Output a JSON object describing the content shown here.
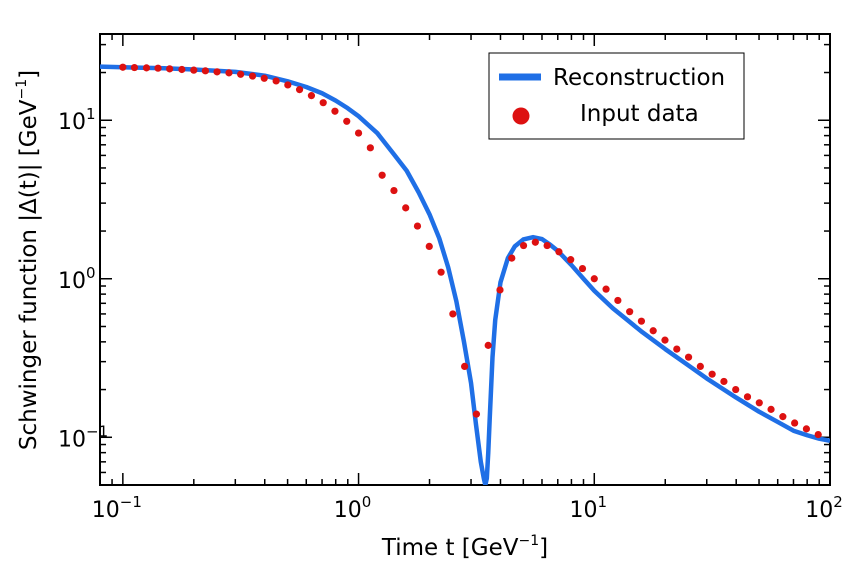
{
  "chart_data": {
    "type": "line",
    "xlabel": "Time t [GeV",
    "xlabel_unit_exp": "−1",
    "xlabel_close": "]",
    "ylabel": "Schwinger function |Δ(t)| [GeV",
    "ylabel_unit_exp": "−1",
    "ylabel_close": "]",
    "x_scale": "log",
    "y_scale": "log",
    "xlim": [
      0.08,
      100
    ],
    "ylim": [
      0.05,
      35
    ],
    "x_ticks": [
      {
        "value": 0.1,
        "base": "10",
        "exp": "−1"
      },
      {
        "value": 1,
        "base": "10",
        "exp": "0"
      },
      {
        "value": 10,
        "base": "10",
        "exp": "1"
      },
      {
        "value": 100,
        "base": "10",
        "exp": "2"
      }
    ],
    "y_ticks": [
      {
        "value": 0.1,
        "base": "10",
        "exp": "−1"
      },
      {
        "value": 1,
        "base": "10",
        "exp": "0"
      },
      {
        "value": 10,
        "base": "10",
        "exp": "1"
      }
    ],
    "legend": {
      "position": "top-right",
      "entries": [
        {
          "label": "Reconstruction",
          "marker": "line",
          "color": "#1f6fe6"
        },
        {
          "label": "Input data",
          "marker": "circle",
          "color": "#dd1111"
        }
      ]
    },
    "grid": false,
    "series": [
      {
        "name": "Reconstruction",
        "style": "line",
        "color": "#1f6fe6",
        "x": [
          0.08,
          0.1,
          0.15,
          0.2,
          0.3,
          0.4,
          0.5,
          0.6,
          0.7,
          0.8,
          0.9,
          1.0,
          1.2,
          1.4,
          1.6,
          1.8,
          2.0,
          2.2,
          2.4,
          2.6,
          2.8,
          3.0,
          3.15,
          3.3,
          3.4,
          3.45,
          3.5,
          3.55,
          3.6,
          3.7,
          3.8,
          4.0,
          4.3,
          4.6,
          5.0,
          5.5,
          6.0,
          6.5,
          7.0,
          8.0,
          9.0,
          10,
          12,
          14,
          16,
          20,
          25,
          30,
          40,
          50,
          60,
          70,
          80,
          90,
          100
        ],
        "y": [
          21.8,
          21.6,
          21.3,
          20.9,
          20.2,
          19.1,
          17.6,
          16.2,
          14.8,
          13.3,
          11.9,
          10.6,
          8.3,
          6.2,
          4.8,
          3.5,
          2.55,
          1.8,
          1.18,
          0.72,
          0.4,
          0.22,
          0.12,
          0.07,
          0.055,
          0.05,
          0.055,
          0.08,
          0.13,
          0.32,
          0.55,
          0.95,
          1.35,
          1.6,
          1.77,
          1.83,
          1.78,
          1.64,
          1.5,
          1.22,
          1.0,
          0.84,
          0.65,
          0.54,
          0.46,
          0.36,
          0.285,
          0.235,
          0.178,
          0.145,
          0.125,
          0.11,
          0.103,
          0.098,
          0.095
        ]
      },
      {
        "name": "Input data",
        "style": "scatter",
        "color": "#dd1111",
        "x": [
          0.1,
          0.112,
          0.126,
          0.141,
          0.158,
          0.178,
          0.2,
          0.224,
          0.251,
          0.282,
          0.316,
          0.355,
          0.398,
          0.447,
          0.501,
          0.562,
          0.631,
          0.708,
          0.794,
          0.891,
          1.0,
          1.122,
          1.259,
          1.413,
          1.585,
          1.778,
          1.995,
          2.239,
          2.512,
          2.818,
          3.162,
          3.548,
          3.981,
          4.467,
          5.012,
          5.623,
          6.31,
          7.079,
          7.943,
          8.913,
          10.0,
          11.22,
          12.59,
          14.13,
          15.85,
          17.78,
          19.95,
          22.39,
          25.12,
          28.18,
          31.62,
          35.48,
          39.81,
          44.67,
          50.12,
          56.23,
          63.1,
          70.79,
          79.43,
          89.13
        ],
        "y": [
          21.6,
          21.5,
          21.4,
          21.3,
          21.1,
          20.9,
          20.7,
          20.5,
          20.2,
          19.9,
          19.5,
          19.0,
          18.4,
          17.7,
          16.7,
          15.6,
          14.3,
          12.9,
          11.4,
          9.85,
          8.3,
          6.7,
          4.5,
          3.6,
          2.8,
          2.15,
          1.6,
          1.1,
          0.6,
          0.28,
          0.14,
          0.38,
          0.85,
          1.35,
          1.62,
          1.7,
          1.62,
          1.48,
          1.32,
          1.16,
          1.0,
          0.86,
          0.73,
          0.62,
          0.54,
          0.47,
          0.41,
          0.36,
          0.32,
          0.28,
          0.25,
          0.225,
          0.2,
          0.18,
          0.165,
          0.15,
          0.135,
          0.123,
          0.113,
          0.104
        ]
      }
    ]
  }
}
